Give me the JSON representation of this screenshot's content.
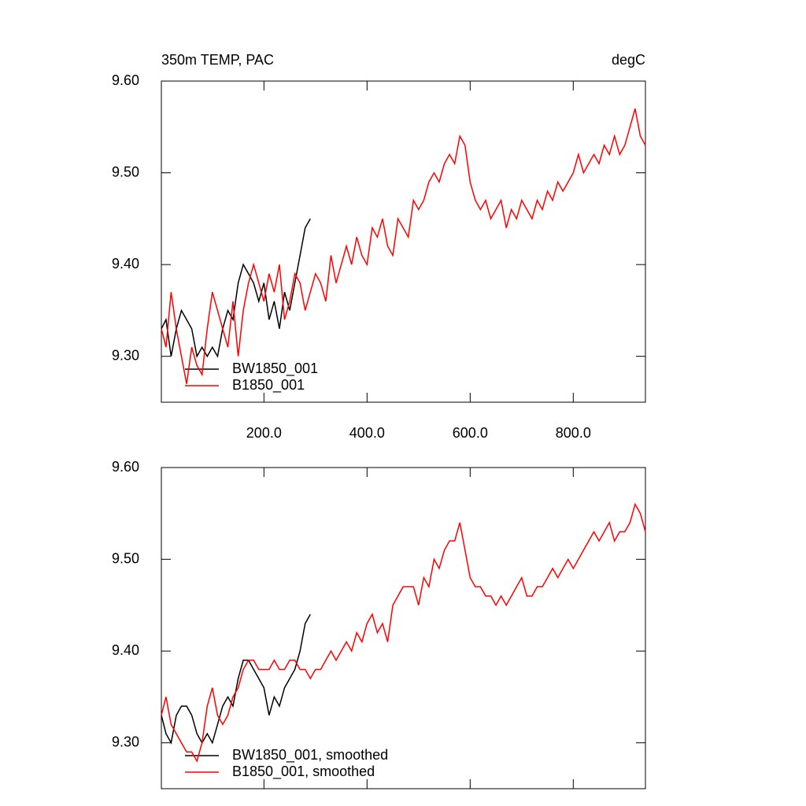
{
  "chart_data": [
    {
      "type": "line",
      "title": "350m TEMP, PAC",
      "subtitle": "degC",
      "xlim": [
        1,
        940
      ],
      "ylim": [
        9.25,
        9.6
      ],
      "xticks": [
        {
          "value": 200,
          "label": "200.0"
        },
        {
          "value": 400,
          "label": "400.0"
        },
        {
          "value": 600,
          "label": "600.0"
        },
        {
          "value": 800,
          "label": "800.0"
        }
      ],
      "yticks": [
        {
          "value": 9.3,
          "label": "9.30"
        },
        {
          "value": 9.4,
          "label": "9.40"
        },
        {
          "value": 9.5,
          "label": "9.50"
        },
        {
          "value": 9.6,
          "label": "9.60"
        }
      ],
      "legend": "lower left",
      "series": [
        {
          "name": "BW1850_001",
          "color": "#000000",
          "x": [
            1,
            10,
            20,
            30,
            40,
            50,
            60,
            70,
            80,
            90,
            100,
            110,
            120,
            130,
            140,
            150,
            160,
            170,
            180,
            190,
            200,
            210,
            220,
            230,
            240,
            250,
            260,
            270,
            280,
            290
          ],
          "values": [
            9.33,
            9.34,
            9.3,
            9.33,
            9.35,
            9.34,
            9.33,
            9.3,
            9.31,
            9.3,
            9.31,
            9.3,
            9.33,
            9.35,
            9.34,
            9.38,
            9.4,
            9.39,
            9.38,
            9.36,
            9.38,
            9.34,
            9.36,
            9.33,
            9.37,
            9.35,
            9.38,
            9.41,
            9.44,
            9.45
          ]
        },
        {
          "name": "B1850_001",
          "color": "#ff0000",
          "x": [
            1,
            10,
            20,
            30,
            40,
            50,
            60,
            70,
            80,
            90,
            100,
            110,
            120,
            130,
            140,
            150,
            160,
            170,
            180,
            190,
            200,
            210,
            220,
            230,
            240,
            250,
            260,
            270,
            280,
            290,
            300,
            310,
            320,
            330,
            340,
            350,
            360,
            370,
            380,
            390,
            400,
            410,
            420,
            430,
            440,
            450,
            460,
            470,
            480,
            490,
            500,
            510,
            520,
            530,
            540,
            550,
            560,
            570,
            580,
            590,
            600,
            610,
            620,
            630,
            640,
            650,
            660,
            670,
            680,
            690,
            700,
            710,
            720,
            730,
            740,
            750,
            760,
            770,
            780,
            790,
            800,
            810,
            820,
            830,
            840,
            850,
            860,
            870,
            880,
            890,
            900,
            910,
            920,
            930,
            940
          ],
          "values": [
            9.33,
            9.31,
            9.37,
            9.33,
            9.3,
            9.27,
            9.31,
            9.29,
            9.28,
            9.33,
            9.37,
            9.35,
            9.33,
            9.31,
            9.36,
            9.3,
            9.35,
            9.38,
            9.4,
            9.38,
            9.36,
            9.39,
            9.37,
            9.4,
            9.34,
            9.36,
            9.39,
            9.38,
            9.35,
            9.37,
            9.39,
            9.38,
            9.36,
            9.41,
            9.38,
            9.4,
            9.42,
            9.4,
            9.43,
            9.41,
            9.4,
            9.44,
            9.43,
            9.45,
            9.42,
            9.41,
            9.45,
            9.44,
            9.43,
            9.47,
            9.46,
            9.47,
            9.49,
            9.5,
            9.49,
            9.51,
            9.52,
            9.51,
            9.54,
            9.53,
            9.49,
            9.47,
            9.46,
            9.47,
            9.45,
            9.46,
            9.47,
            9.44,
            9.46,
            9.45,
            9.47,
            9.46,
            9.45,
            9.47,
            9.46,
            9.48,
            9.47,
            9.49,
            9.48,
            9.49,
            9.5,
            9.52,
            9.5,
            9.51,
            9.52,
            9.51,
            9.53,
            9.52,
            9.54,
            9.52,
            9.53,
            9.55,
            9.57,
            9.54,
            9.53
          ]
        }
      ]
    },
    {
      "type": "line",
      "xlim": [
        1,
        940
      ],
      "ylim": [
        9.25,
        9.6
      ],
      "xticks": [
        200,
        400,
        600,
        800
      ],
      "show_xtick_labels": false,
      "yticks": [
        {
          "value": 9.3,
          "label": "9.30"
        },
        {
          "value": 9.4,
          "label": "9.40"
        },
        {
          "value": 9.5,
          "label": "9.50"
        },
        {
          "value": 9.6,
          "label": "9.60"
        }
      ],
      "legend": "lower left",
      "series": [
        {
          "name": "BW1850_001, smoothed",
          "color": "#000000",
          "x": [
            1,
            10,
            20,
            30,
            40,
            50,
            60,
            70,
            80,
            90,
            100,
            110,
            120,
            130,
            140,
            150,
            160,
            170,
            180,
            190,
            200,
            210,
            220,
            230,
            240,
            250,
            260,
            270,
            280,
            290
          ],
          "values": [
            9.33,
            9.31,
            9.3,
            9.33,
            9.34,
            9.34,
            9.33,
            9.31,
            9.3,
            9.31,
            9.3,
            9.32,
            9.34,
            9.35,
            9.34,
            9.37,
            9.39,
            9.39,
            9.38,
            9.37,
            9.36,
            9.33,
            9.35,
            9.34,
            9.36,
            9.37,
            9.38,
            9.4,
            9.43,
            9.44
          ]
        },
        {
          "name": "B1850_001, smoothed",
          "color": "#ff0000",
          "x": [
            1,
            10,
            20,
            30,
            40,
            50,
            60,
            70,
            80,
            90,
            100,
            110,
            120,
            130,
            140,
            150,
            160,
            170,
            180,
            190,
            200,
            210,
            220,
            230,
            240,
            250,
            260,
            270,
            280,
            290,
            300,
            310,
            320,
            330,
            340,
            350,
            360,
            370,
            380,
            390,
            400,
            410,
            420,
            430,
            440,
            450,
            460,
            470,
            480,
            490,
            500,
            510,
            520,
            530,
            540,
            550,
            560,
            570,
            580,
            590,
            600,
            610,
            620,
            630,
            640,
            650,
            660,
            670,
            680,
            690,
            700,
            710,
            720,
            730,
            740,
            750,
            760,
            770,
            780,
            790,
            800,
            810,
            820,
            830,
            840,
            850,
            860,
            870,
            880,
            890,
            900,
            910,
            920,
            930,
            940
          ],
          "values": [
            9.33,
            9.35,
            9.32,
            9.31,
            9.3,
            9.29,
            9.29,
            9.28,
            9.3,
            9.34,
            9.36,
            9.33,
            9.32,
            9.33,
            9.35,
            9.36,
            9.38,
            9.39,
            9.39,
            9.38,
            9.38,
            9.38,
            9.39,
            9.38,
            9.38,
            9.39,
            9.39,
            9.38,
            9.38,
            9.37,
            9.38,
            9.38,
            9.39,
            9.4,
            9.39,
            9.4,
            9.41,
            9.4,
            9.42,
            9.41,
            9.43,
            9.44,
            9.42,
            9.43,
            9.41,
            9.45,
            9.46,
            9.47,
            9.47,
            9.47,
            9.45,
            9.48,
            9.47,
            9.5,
            9.49,
            9.51,
            9.52,
            9.52,
            9.54,
            9.51,
            9.48,
            9.47,
            9.47,
            9.46,
            9.46,
            9.45,
            9.46,
            9.45,
            9.46,
            9.47,
            9.48,
            9.46,
            9.46,
            9.47,
            9.47,
            9.48,
            9.49,
            9.48,
            9.49,
            9.5,
            9.49,
            9.5,
            9.51,
            9.52,
            9.53,
            9.52,
            9.53,
            9.54,
            9.52,
            9.53,
            9.53,
            9.54,
            9.56,
            9.55,
            9.53
          ]
        }
      ]
    }
  ]
}
